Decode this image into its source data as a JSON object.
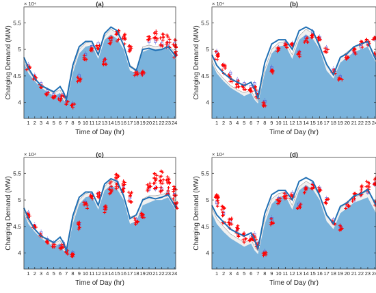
{
  "figure": {
    "scale_label": "× 10⁴"
  },
  "colors": {
    "area_fill": "#7ab3dc",
    "envelope_fill": "#f0f0f0",
    "envelope_stroke": "#9a9a9a",
    "line": "#1f6fb4",
    "box": "#4a4ad8",
    "outlier": "#ff0000",
    "axis": "#262626"
  },
  "chart_data": [
    {
      "type": "area",
      "title": "(a)",
      "xlabel": "Time of Day (hr)",
      "ylabel": "Charging Demand (MW)",
      "ylim": [
        3.7,
        5.8
      ],
      "xlim": [
        0.3,
        24.2
      ],
      "yticks": [
        "4",
        "4.5",
        "5",
        "5.5"
      ],
      "xticks": [
        "1",
        "2",
        "3",
        "4",
        "5",
        "6",
        "7",
        "8",
        "9",
        "10",
        "11",
        "12",
        "13",
        "14",
        "15",
        "16",
        "17",
        "18",
        "19",
        "20",
        "21",
        "22",
        "23",
        "24"
      ],
      "x_hours": [
        0.3,
        1,
        2,
        3,
        4,
        5,
        6,
        6.5,
        7,
        8,
        9,
        10,
        11,
        12,
        13,
        14,
        15,
        16,
        17,
        18,
        19,
        20,
        21,
        22,
        23,
        24,
        24.2
      ],
      "area_values": [
        4.75,
        4.55,
        4.4,
        4.28,
        4.2,
        4.12,
        4.18,
        4.05,
        3.98,
        4.55,
        4.92,
        5.05,
        5.08,
        4.82,
        5.18,
        5.28,
        5.2,
        5.0,
        4.6,
        4.55,
        4.95,
        5.0,
        5.0,
        5.0,
        5.02,
        4.85,
        4.8
      ],
      "envelope_upper": [
        4.78,
        4.6,
        4.45,
        4.32,
        4.24,
        4.18,
        4.24,
        4.1,
        4.02,
        4.62,
        5.0,
        5.12,
        5.15,
        4.9,
        5.25,
        5.38,
        5.3,
        5.1,
        4.7,
        4.62,
        5.05,
        5.08,
        5.05,
        5.08,
        5.1,
        4.95,
        4.9
      ],
      "line_values": [
        4.85,
        4.65,
        4.45,
        4.32,
        4.26,
        4.2,
        4.3,
        4.2,
        4.05,
        4.7,
        5.05,
        5.15,
        5.15,
        4.9,
        5.3,
        5.42,
        5.35,
        5.08,
        4.68,
        4.6,
        5.0,
        5.02,
        4.98,
        5.0,
        5.05,
        4.9,
        4.85
      ],
      "box_medians": [
        4.7,
        4.5,
        4.35,
        4.22,
        4.15,
        4.1,
        4.15,
        4.02,
        3.97,
        4.5,
        4.9,
        5.05,
        5.1,
        4.8,
        5.2,
        5.3,
        5.22,
        5.0,
        4.58,
        4.55,
        5.15,
        5.15,
        5.1,
        5.1,
        5.1,
        4.9
      ],
      "box_hours": [
        1,
        2,
        3,
        4,
        5,
        6,
        6.5,
        7,
        8,
        9,
        10,
        11,
        12,
        13,
        14,
        15,
        16,
        17,
        18,
        19,
        20,
        21,
        22,
        23,
        24,
        24.2
      ],
      "outlier_spread": [
        0.06,
        0.05,
        0.04,
        0.03,
        0.03,
        0.03,
        0.03,
        0.04,
        0.04,
        0.06,
        0.05,
        0.05,
        0.05,
        0.06,
        0.08,
        0.12,
        0.1,
        0.08,
        0.06,
        0.05,
        0.05,
        0.1,
        0.12,
        0.12,
        0.1,
        0.06
      ],
      "outlier_offset": [
        -0.05,
        -0.05,
        -0.05,
        -0.05,
        -0.04,
        -0.04,
        -0.04,
        -0.03,
        -0.03,
        -0.06,
        -0.05,
        -0.05,
        -0.05,
        -0.04,
        -0.02,
        -0.05,
        -0.02,
        0,
        -0.02,
        0,
        0.05,
        0.1,
        0.08,
        0.05,
        0.02,
        0.0
      ]
    },
    {
      "type": "area",
      "title": "(b)",
      "xlabel": "Time of Day (hr)",
      "ylabel": "Charging Demand (MW)",
      "ylim": [
        3.7,
        5.8
      ],
      "xlim": [
        0.3,
        24.2
      ],
      "yticks": [
        "4",
        "4.5",
        "5",
        "5.5"
      ],
      "xticks": [
        "1",
        "2",
        "3",
        "4",
        "5",
        "6",
        "7",
        "8",
        "9",
        "10",
        "11",
        "12",
        "13",
        "14",
        "15",
        "16",
        "17",
        "18",
        "19",
        "20",
        "21",
        "22",
        "23",
        "24"
      ],
      "x_hours": [
        0.3,
        1,
        2,
        3,
        4,
        5,
        6,
        6.5,
        7,
        8,
        9,
        10,
        11,
        12,
        13,
        14,
        15,
        16,
        17,
        18,
        19,
        20,
        21,
        22,
        23,
        24,
        24.2
      ],
      "area_values": [
        4.75,
        4.55,
        4.4,
        4.28,
        4.2,
        4.12,
        4.18,
        4.05,
        3.98,
        4.55,
        4.92,
        5.05,
        5.08,
        4.82,
        5.18,
        5.28,
        5.2,
        5.0,
        4.6,
        4.45,
        4.75,
        4.85,
        4.95,
        5.0,
        5.05,
        4.8,
        4.75
      ],
      "envelope_upper": [
        4.8,
        4.6,
        4.45,
        4.32,
        4.24,
        4.18,
        4.24,
        4.1,
        4.02,
        4.62,
        5.0,
        5.12,
        5.15,
        4.9,
        5.25,
        5.38,
        5.3,
        5.1,
        4.7,
        4.55,
        4.85,
        4.95,
        5.05,
        5.1,
        5.15,
        4.9,
        4.85
      ],
      "line_values": [
        4.9,
        4.7,
        4.55,
        4.45,
        4.38,
        4.32,
        4.38,
        4.25,
        4.08,
        4.75,
        5.1,
        5.18,
        5.18,
        5.0,
        5.35,
        5.42,
        5.35,
        5.05,
        4.72,
        4.52,
        4.85,
        4.92,
        5.05,
        5.1,
        5.15,
        4.85,
        4.8
      ],
      "box_medians": [
        4.95,
        4.7,
        4.55,
        4.42,
        4.35,
        4.3,
        4.35,
        4.18,
        4.02,
        4.65,
        5.02,
        5.1,
        5.1,
        4.95,
        5.22,
        5.32,
        5.22,
        5.02,
        4.62,
        4.48,
        4.85,
        4.95,
        5.05,
        5.1,
        5.2,
        4.9
      ],
      "box_hours": [
        1,
        2,
        3,
        4,
        5,
        6,
        6.5,
        7,
        8,
        9,
        10,
        11,
        12,
        13,
        14,
        15,
        16,
        17,
        18,
        19,
        20,
        21,
        22,
        23,
        24,
        24.2
      ],
      "outlier_spread": [
        0.1,
        0.1,
        0.09,
        0.08,
        0.07,
        0.06,
        0.05,
        0.05,
        0.05,
        0.06,
        0.05,
        0.05,
        0.05,
        0.05,
        0.05,
        0.05,
        0.05,
        0.05,
        0.04,
        0.04,
        0.05,
        0.06,
        0.07,
        0.07,
        0.05,
        0.04
      ],
      "outlier_offset": [
        -0.08,
        -0.08,
        -0.08,
        -0.08,
        -0.08,
        -0.08,
        -0.08,
        -0.06,
        -0.04,
        -0.05,
        -0.04,
        -0.04,
        -0.04,
        -0.04,
        -0.04,
        -0.05,
        -0.04,
        -0.04,
        -0.04,
        -0.04,
        0.0,
        0.02,
        0.05,
        0.05,
        0.02,
        0.0
      ]
    },
    {
      "type": "area",
      "title": "(c)",
      "xlabel": "Time of Day (hr)",
      "ylabel": "Charging Demand (MW)",
      "ylim": [
        3.7,
        5.8
      ],
      "xlim": [
        0.3,
        24.2
      ],
      "yticks": [
        "4",
        "4.5",
        "5",
        "5.5"
      ],
      "xticks": [
        "1",
        "2",
        "3",
        "4",
        "5",
        "6",
        "7",
        "8",
        "9",
        "10",
        "11",
        "12",
        "13",
        "14",
        "15",
        "16",
        "17",
        "18",
        "19",
        "20",
        "21",
        "22",
        "23",
        "24"
      ],
      "x_hours": [
        0.3,
        1,
        2,
        3,
        4,
        5,
        6,
        6.5,
        7,
        8,
        9,
        10,
        11,
        12,
        13,
        14,
        15,
        16,
        17,
        18,
        19,
        20,
        21,
        22,
        23,
        24,
        24.2
      ],
      "area_values": [
        4.75,
        4.55,
        4.4,
        4.28,
        4.2,
        4.12,
        4.18,
        4.05,
        3.98,
        4.55,
        4.92,
        5.05,
        5.08,
        4.82,
        5.18,
        5.28,
        5.2,
        5.0,
        4.55,
        4.6,
        4.9,
        4.95,
        5.0,
        5.0,
        5.05,
        4.85,
        4.8
      ],
      "envelope_upper": [
        4.78,
        4.6,
        4.45,
        4.32,
        4.24,
        4.18,
        4.24,
        4.1,
        4.02,
        4.62,
        5.0,
        5.12,
        5.15,
        4.9,
        5.25,
        5.38,
        5.3,
        5.1,
        4.68,
        4.72,
        5.02,
        5.08,
        5.08,
        5.1,
        5.15,
        4.95,
        4.9
      ],
      "line_values": [
        4.85,
        4.65,
        4.45,
        4.32,
        4.26,
        4.2,
        4.3,
        4.2,
        4.05,
        4.7,
        5.05,
        5.15,
        5.15,
        4.9,
        5.3,
        5.4,
        5.35,
        5.08,
        4.65,
        4.72,
        5.0,
        5.05,
        5.02,
        5.05,
        5.1,
        4.9,
        4.85
      ],
      "box_medians": [
        4.75,
        4.52,
        4.38,
        4.25,
        4.18,
        4.12,
        4.18,
        4.05,
        4.0,
        4.55,
        4.95,
        5.1,
        5.12,
        4.85,
        5.22,
        5.32,
        5.25,
        5.05,
        4.62,
        4.7,
        5.2,
        5.22,
        5.2,
        5.15,
        5.1,
        4.9
      ],
      "box_hours": [
        1,
        2,
        3,
        4,
        5,
        6,
        6.5,
        7,
        8,
        9,
        10,
        11,
        12,
        13,
        14,
        15,
        16,
        17,
        18,
        19,
        20,
        21,
        22,
        23,
        24,
        24.2
      ],
      "outlier_spread": [
        0.05,
        0.05,
        0.04,
        0.04,
        0.03,
        0.03,
        0.03,
        0.04,
        0.05,
        0.08,
        0.07,
        0.06,
        0.07,
        0.08,
        0.12,
        0.16,
        0.14,
        0.1,
        0.06,
        0.06,
        0.08,
        0.16,
        0.2,
        0.18,
        0.14,
        0.06
      ],
      "outlier_offset": [
        -0.04,
        -0.05,
        -0.05,
        -0.05,
        -0.04,
        -0.04,
        -0.04,
        -0.03,
        -0.03,
        -0.05,
        -0.05,
        -0.05,
        -0.05,
        -0.04,
        0.0,
        0.02,
        0.02,
        0.0,
        -0.02,
        0.0,
        0.05,
        0.15,
        0.15,
        0.12,
        0.05,
        0.0
      ]
    },
    {
      "type": "area",
      "title": "(d)",
      "xlabel": "Time of Day (hr)",
      "ylabel": "Charging Demand (MW)",
      "ylim": [
        3.7,
        5.8
      ],
      "xlim": [
        0.3,
        24.2
      ],
      "yticks": [
        "4",
        "4.5",
        "5",
        "5.5"
      ],
      "xticks": [
        "1",
        "2",
        "3",
        "4",
        "5",
        "6",
        "7",
        "8",
        "9",
        "10",
        "11",
        "12",
        "13",
        "14",
        "15",
        "16",
        "17",
        "18",
        "19",
        "20",
        "21",
        "22",
        "23",
        "24"
      ],
      "x_hours": [
        0.3,
        1,
        2,
        3,
        4,
        5,
        6,
        6.5,
        7,
        8,
        9,
        10,
        11,
        12,
        13,
        14,
        15,
        16,
        17,
        18,
        19,
        20,
        21,
        22,
        23,
        24,
        24.2
      ],
      "area_values": [
        4.75,
        4.55,
        4.4,
        4.28,
        4.2,
        4.12,
        4.18,
        4.05,
        3.98,
        4.55,
        4.92,
        5.05,
        5.08,
        4.82,
        5.18,
        5.28,
        5.2,
        5.0,
        4.6,
        4.45,
        4.75,
        4.85,
        4.95,
        5.0,
        5.05,
        4.8,
        4.75
      ],
      "envelope_upper": [
        4.85,
        4.65,
        4.5,
        4.36,
        4.28,
        4.2,
        4.26,
        4.12,
        4.04,
        4.65,
        5.02,
        5.12,
        5.15,
        4.9,
        5.25,
        5.35,
        5.28,
        5.08,
        4.7,
        4.55,
        4.85,
        4.95,
        5.05,
        5.1,
        5.18,
        4.95,
        4.9
      ],
      "line_values": [
        4.9,
        4.72,
        4.58,
        4.45,
        4.38,
        4.32,
        4.38,
        4.25,
        4.08,
        4.75,
        5.1,
        5.18,
        5.18,
        5.0,
        5.35,
        5.42,
        5.35,
        5.08,
        4.72,
        4.55,
        4.88,
        4.95,
        5.08,
        5.12,
        5.2,
        4.95,
        4.9
      ],
      "box_medians": [
        4.95,
        4.75,
        4.6,
        4.45,
        4.35,
        4.3,
        4.35,
        4.18,
        4.02,
        4.65,
        5.02,
        5.12,
        5.12,
        4.92,
        5.22,
        5.3,
        5.22,
        5.02,
        4.62,
        4.5,
        4.9,
        5.0,
        5.1,
        5.15,
        5.3,
        4.95
      ],
      "box_hours": [
        1,
        2,
        3,
        4,
        5,
        6,
        6.5,
        7,
        8,
        9,
        10,
        11,
        12,
        13,
        14,
        15,
        16,
        17,
        18,
        19,
        20,
        21,
        22,
        23,
        24,
        24.2
      ],
      "outlier_spread": [
        0.18,
        0.16,
        0.14,
        0.12,
        0.1,
        0.08,
        0.06,
        0.06,
        0.05,
        0.07,
        0.06,
        0.06,
        0.06,
        0.05,
        0.06,
        0.05,
        0.05,
        0.05,
        0.04,
        0.05,
        0.06,
        0.08,
        0.1,
        0.1,
        0.08,
        0.05
      ],
      "outlier_offset": [
        0.02,
        -0.02,
        -0.04,
        -0.05,
        -0.06,
        -0.06,
        -0.06,
        -0.05,
        -0.04,
        -0.05,
        -0.04,
        -0.04,
        -0.04,
        -0.04,
        -0.04,
        -0.05,
        -0.04,
        -0.04,
        -0.04,
        -0.02,
        0.0,
        0.05,
        0.08,
        0.1,
        0.05,
        0.0
      ]
    }
  ]
}
